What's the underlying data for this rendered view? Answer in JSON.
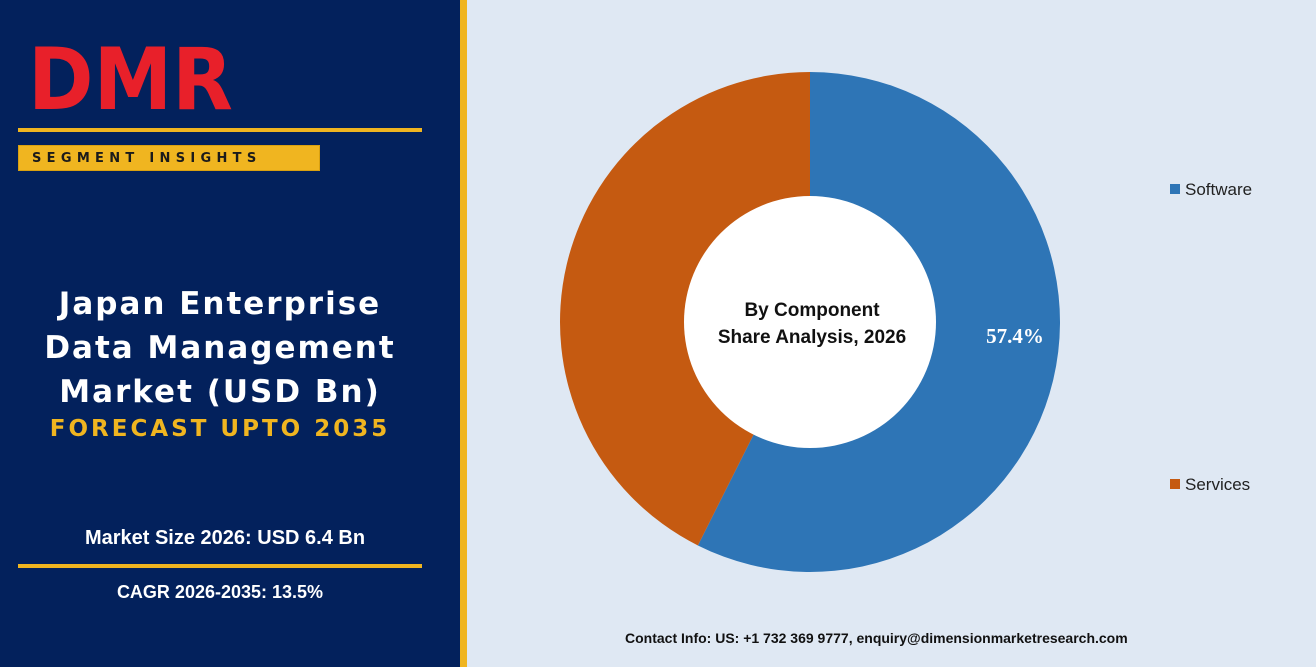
{
  "brand": {
    "logo_text": "DMR",
    "segment_label": "SEGMENT INSIGHTS"
  },
  "report": {
    "title_line1": "Japan Enterprise",
    "title_line2": "Data Management",
    "title_line3": "Market (USD Bn)",
    "forecast": "FORECAST UPTO 2035",
    "market_size": "Market Size 2026: USD 6.4 Bn",
    "cagr": "CAGR 2026-2035: 13.5%"
  },
  "chart_data": {
    "type": "pie",
    "title": "By Component",
    "subtitle": "Share Analysis, 2026",
    "categories": [
      "Software",
      "Services"
    ],
    "values": [
      57.4,
      42.6
    ],
    "labels": [
      "57.4%",
      ""
    ],
    "colors": [
      "#2e75b6",
      "#c55a11"
    ],
    "legend": "right"
  },
  "footer": {
    "contact": "Contact Info: US: +1 732 369 9777, enquiry@dimensionmarketresearch.com"
  },
  "colors": {
    "navy": "#03215c",
    "gold": "#f0b520",
    "background": "#dfe8f3",
    "logo_red": "#e8202a",
    "logo_grey": "#b8c6c9"
  }
}
